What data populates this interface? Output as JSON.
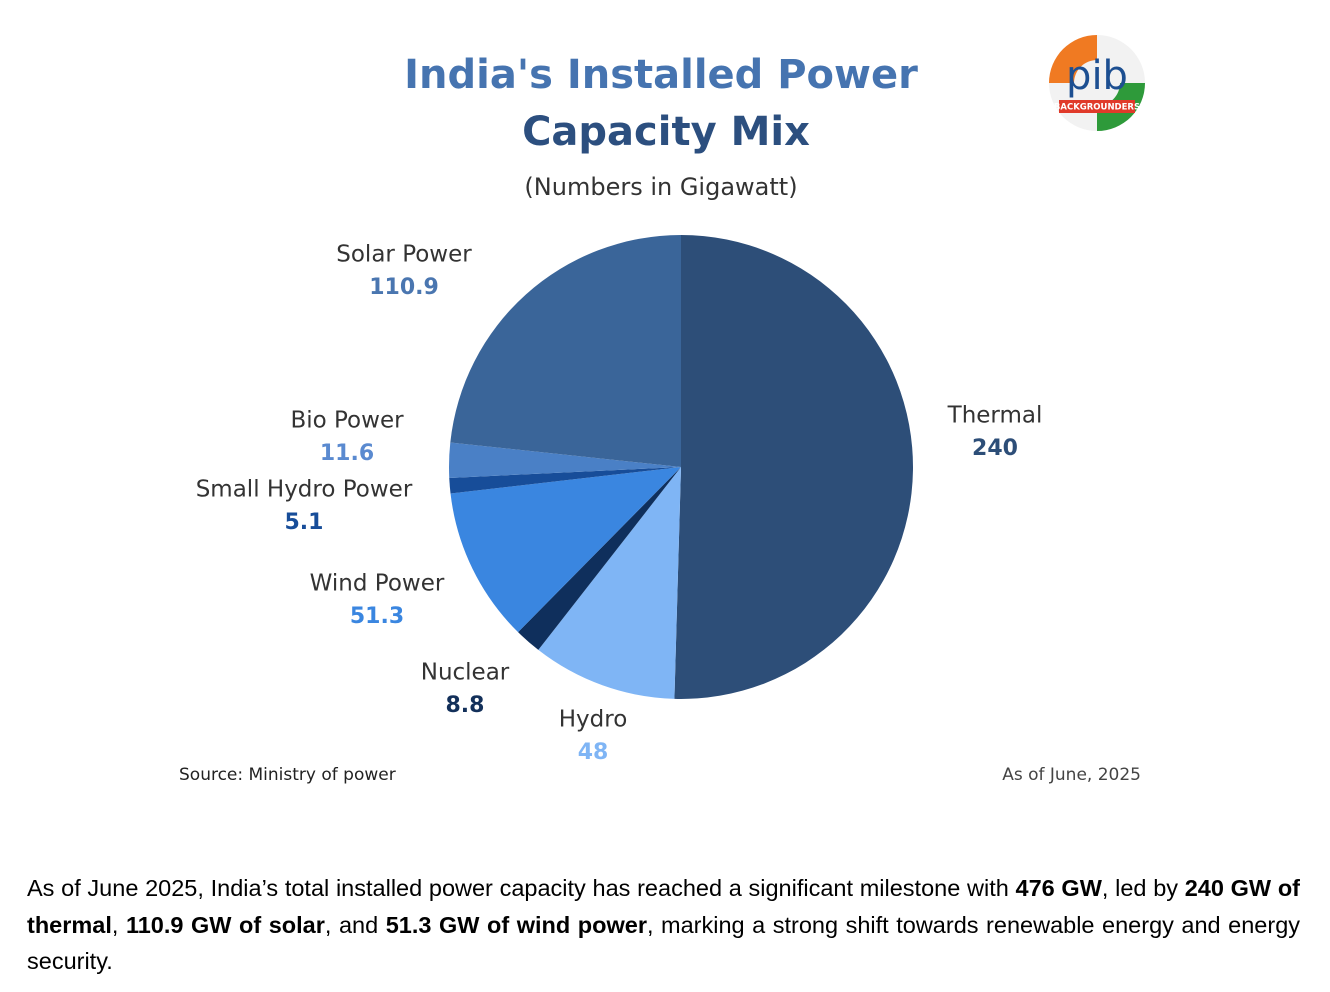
{
  "chart_data": {
    "type": "pie",
    "title": [
      "India's Installed Power",
      "Capacity Mix"
    ],
    "subtitle": "(Numbers in Gigawatt)",
    "categories": [
      "Thermal",
      "Hydro",
      "Nuclear",
      "Wind Power",
      "Small Hydro Power",
      "Bio Power",
      "Solar Power"
    ],
    "values": [
      240,
      48,
      8.8,
      51.3,
      5.1,
      11.6,
      110.9
    ],
    "colors": [
      "#2d4e78",
      "#7fb5f5",
      "#0f2f5c",
      "#3a86e0",
      "#174d99",
      "#4a80c6",
      "#3a6599"
    ],
    "label_colors": [
      "#2d4e78",
      "#7fb5f5",
      "#13305a",
      "#3a86e0",
      "#174d99",
      "#5a8ad0",
      "#4a76b0"
    ],
    "source": "Source: Ministry of power",
    "date_note": "As of June, 2025"
  },
  "logo": {
    "text": "pib",
    "tagline": "BACKGROUNDERS"
  },
  "caption": [
    {
      "text": "As of June 2025, India’s total installed power capacity has reached a significant milestone with ",
      "bold": false
    },
    {
      "text": "476 GW",
      "bold": true
    },
    {
      "text": ", led by ",
      "bold": false
    },
    {
      "text": "240 GW of thermal",
      "bold": true
    },
    {
      "text": ", ",
      "bold": false
    },
    {
      "text": "110.9 GW of solar",
      "bold": true
    },
    {
      "text": ", and ",
      "bold": false
    },
    {
      "text": "51.3 GW of wind power",
      "bold": true
    },
    {
      "text": ", marking a strong shift towards renewable energy and energy security.",
      "bold": false
    }
  ]
}
